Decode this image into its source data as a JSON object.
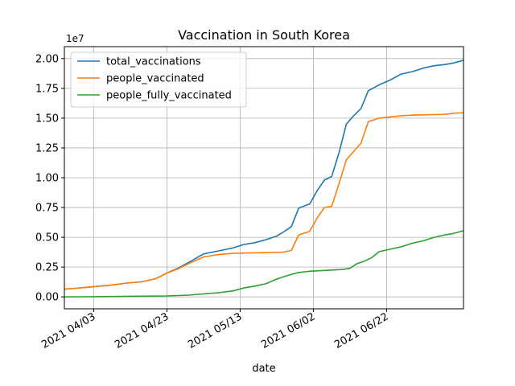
{
  "chart_data": {
    "type": "line",
    "title": "Vaccination in South Korea",
    "xlabel": "date",
    "ylabel": "",
    "y_offset_label": "1e7",
    "x_ticks": [
      "2021 04/03",
      "2021 04/23",
      "2021 05/13",
      "2021 06/02",
      "2021 06/22"
    ],
    "x_tick_dates": [
      "2021-04-03",
      "2021-04-23",
      "2021-05-13",
      "2021-06-02",
      "2021-06-22"
    ],
    "y_ticks": [
      "0.00",
      "0.25",
      "0.50",
      "0.75",
      "1.00",
      "1.25",
      "1.50",
      "1.75",
      "2.00"
    ],
    "y_tick_values": [
      0,
      2500000,
      5000000,
      7500000,
      10000000,
      12500000,
      15000000,
      17500000,
      20000000
    ],
    "xlim": [
      "2021-03-26",
      "2021-07-13"
    ],
    "ylim": [
      -1000000,
      21000000
    ],
    "grid": true,
    "legend_position": "upper-left",
    "series": [
      {
        "name": "total_vaccinations",
        "color": "#1f77b4",
        "x": [
          "2021-03-26",
          "2021-03-29",
          "2021-04-01",
          "2021-04-04",
          "2021-04-08",
          "2021-04-12",
          "2021-04-16",
          "2021-04-20",
          "2021-04-23",
          "2021-04-26",
          "2021-04-29",
          "2021-05-03",
          "2021-05-07",
          "2021-05-11",
          "2021-05-14",
          "2021-05-17",
          "2021-05-20",
          "2021-05-23",
          "2021-05-25",
          "2021-05-27",
          "2021-05-29",
          "2021-06-01",
          "2021-06-03",
          "2021-06-05",
          "2021-06-07",
          "2021-06-09",
          "2021-06-11",
          "2021-06-13",
          "2021-06-15",
          "2021-06-17",
          "2021-06-20",
          "2021-06-23",
          "2021-06-26",
          "2021-06-29",
          "2021-07-02",
          "2021-07-05",
          "2021-07-08",
          "2021-07-10",
          "2021-07-13"
        ],
        "values": [
          650000,
          720000,
          800000,
          880000,
          1000000,
          1160000,
          1260000,
          1530000,
          2000000,
          2400000,
          2900000,
          3600000,
          3850000,
          4100000,
          4400000,
          4550000,
          4800000,
          5100000,
          5480000,
          5900000,
          7450000,
          7800000,
          8900000,
          9800000,
          10100000,
          12100000,
          14500000,
          15200000,
          15800000,
          17300000,
          17800000,
          18200000,
          18700000,
          18900000,
          19200000,
          19400000,
          19500000,
          19600000,
          19850000
        ]
      },
      {
        "name": "people_vaccinated",
        "color": "#ff7f0e",
        "x": [
          "2021-03-26",
          "2021-03-29",
          "2021-04-01",
          "2021-04-04",
          "2021-04-08",
          "2021-04-12",
          "2021-04-16",
          "2021-04-20",
          "2021-04-23",
          "2021-04-26",
          "2021-04-29",
          "2021-05-03",
          "2021-05-07",
          "2021-05-11",
          "2021-05-14",
          "2021-05-17",
          "2021-05-20",
          "2021-05-23",
          "2021-05-25",
          "2021-05-27",
          "2021-05-29",
          "2021-06-01",
          "2021-06-03",
          "2021-06-05",
          "2021-06-07",
          "2021-06-09",
          "2021-06-11",
          "2021-06-13",
          "2021-06-15",
          "2021-06-17",
          "2021-06-20",
          "2021-06-23",
          "2021-06-26",
          "2021-06-29",
          "2021-07-02",
          "2021-07-05",
          "2021-07-08",
          "2021-07-10",
          "2021-07-13"
        ],
        "values": [
          650000,
          720000,
          800000,
          880000,
          1000000,
          1160000,
          1260000,
          1530000,
          2000000,
          2350000,
          2800000,
          3350000,
          3550000,
          3650000,
          3680000,
          3700000,
          3720000,
          3740000,
          3760000,
          3900000,
          5200000,
          5500000,
          6600000,
          7500000,
          7600000,
          9500000,
          11500000,
          12200000,
          12900000,
          14700000,
          15000000,
          15100000,
          15200000,
          15250000,
          15280000,
          15300000,
          15320000,
          15400000,
          15450000
        ]
      },
      {
        "name": "people_fully_vaccinated",
        "color": "#2ca02c",
        "x": [
          "2021-03-26",
          "2021-04-01",
          "2021-04-08",
          "2021-04-16",
          "2021-04-23",
          "2021-04-29",
          "2021-05-03",
          "2021-05-07",
          "2021-05-11",
          "2021-05-14",
          "2021-05-17",
          "2021-05-20",
          "2021-05-23",
          "2021-05-26",
          "2021-05-29",
          "2021-06-01",
          "2021-06-04",
          "2021-06-07",
          "2021-06-10",
          "2021-06-12",
          "2021-06-14",
          "2021-06-16",
          "2021-06-18",
          "2021-06-20",
          "2021-06-23",
          "2021-06-26",
          "2021-06-29",
          "2021-07-02",
          "2021-07-05",
          "2021-07-08",
          "2021-07-10",
          "2021-07-13"
        ],
        "values": [
          0,
          10000,
          30000,
          60000,
          80000,
          150000,
          250000,
          350000,
          500000,
          750000,
          900000,
          1100000,
          1500000,
          1800000,
          2050000,
          2150000,
          2200000,
          2250000,
          2300000,
          2400000,
          2800000,
          3000000,
          3300000,
          3800000,
          4000000,
          4200000,
          4500000,
          4700000,
          5000000,
          5200000,
          5300000,
          5550000
        ]
      }
    ]
  }
}
